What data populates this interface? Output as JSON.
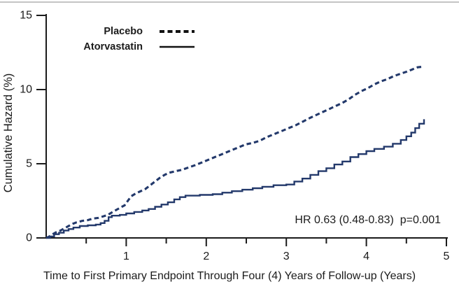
{
  "figure": {
    "top_rule_color": "#c4c4c4",
    "background": "#ffffff",
    "text_color": "#1b1b1b"
  },
  "chart_data": {
    "type": "line",
    "subtype": "cumulative-hazard-step-curves",
    "title": "",
    "xlabel": "Time to First Primary Endpoint Through Four (4) Years of Follow-up (Years)",
    "ylabel": "Cumulative Hazard (%)",
    "annotation": "HR 0.63 (0.48-0.83)  p=0.001",
    "xlim": [
      0,
      5
    ],
    "ylim": [
      0,
      15
    ],
    "x_ticks": [
      1,
      2,
      3,
      4,
      5
    ],
    "x_minor_ticks": [
      0.5,
      1.5,
      2.5,
      3.5,
      4.5
    ],
    "y_ticks": [
      0,
      5,
      10,
      15
    ],
    "grid": false,
    "legend_position": "top-left-inside",
    "axis_color": "#1b1b1b",
    "curve_color": "#23396b",
    "legend_sample_color": "#111111",
    "series": [
      {
        "name": "Placebo",
        "style": "dashed",
        "interp": "linear",
        "points": [
          [
            0,
            0
          ],
          [
            0.04,
            0.1
          ],
          [
            0.08,
            0.25
          ],
          [
            0.13,
            0.4
          ],
          [
            0.18,
            0.5
          ],
          [
            0.23,
            0.65
          ],
          [
            0.28,
            0.8
          ],
          [
            0.33,
            0.95
          ],
          [
            0.38,
            1.05
          ],
          [
            0.45,
            1.15
          ],
          [
            0.52,
            1.2
          ],
          [
            0.58,
            1.3
          ],
          [
            0.65,
            1.35
          ],
          [
            0.71,
            1.45
          ],
          [
            0.77,
            1.55
          ],
          [
            0.83,
            1.75
          ],
          [
            0.88,
            1.9
          ],
          [
            0.93,
            2.05
          ],
          [
            0.98,
            2.2
          ],
          [
            1.02,
            2.5
          ],
          [
            1.06,
            2.8
          ],
          [
            1.12,
            3.0
          ],
          [
            1.18,
            3.15
          ],
          [
            1.24,
            3.3
          ],
          [
            1.3,
            3.55
          ],
          [
            1.36,
            3.8
          ],
          [
            1.42,
            4.05
          ],
          [
            1.48,
            4.25
          ],
          [
            1.54,
            4.4
          ],
          [
            1.62,
            4.5
          ],
          [
            1.7,
            4.6
          ],
          [
            1.78,
            4.75
          ],
          [
            1.86,
            4.9
          ],
          [
            1.95,
            5.1
          ],
          [
            2.04,
            5.3
          ],
          [
            2.13,
            5.5
          ],
          [
            2.22,
            5.7
          ],
          [
            2.31,
            5.9
          ],
          [
            2.4,
            6.1
          ],
          [
            2.49,
            6.3
          ],
          [
            2.58,
            6.4
          ],
          [
            2.67,
            6.55
          ],
          [
            2.76,
            6.8
          ],
          [
            2.85,
            7.0
          ],
          [
            2.94,
            7.2
          ],
          [
            3.03,
            7.4
          ],
          [
            3.12,
            7.6
          ],
          [
            3.21,
            7.85
          ],
          [
            3.3,
            8.1
          ],
          [
            3.38,
            8.3
          ],
          [
            3.46,
            8.5
          ],
          [
            3.54,
            8.7
          ],
          [
            3.62,
            8.9
          ],
          [
            3.7,
            9.1
          ],
          [
            3.78,
            9.35
          ],
          [
            3.86,
            9.65
          ],
          [
            3.94,
            9.9
          ],
          [
            4.02,
            10.1
          ],
          [
            4.1,
            10.35
          ],
          [
            4.18,
            10.55
          ],
          [
            4.26,
            10.7
          ],
          [
            4.34,
            10.9
          ],
          [
            4.42,
            11.05
          ],
          [
            4.5,
            11.2
          ],
          [
            4.57,
            11.35
          ],
          [
            4.64,
            11.5
          ],
          [
            4.72,
            11.55
          ]
        ]
      },
      {
        "name": "Atorvastatin",
        "style": "solid",
        "interp": "step",
        "points": [
          [
            0,
            0
          ],
          [
            0.05,
            0.1
          ],
          [
            0.1,
            0.25
          ],
          [
            0.16,
            0.35
          ],
          [
            0.22,
            0.5
          ],
          [
            0.28,
            0.6
          ],
          [
            0.34,
            0.7
          ],
          [
            0.42,
            0.8
          ],
          [
            0.52,
            0.85
          ],
          [
            0.62,
            0.9
          ],
          [
            0.68,
            1.0
          ],
          [
            0.73,
            1.15
          ],
          [
            0.78,
            1.4
          ],
          [
            0.82,
            1.5
          ],
          [
            0.92,
            1.55
          ],
          [
            1.0,
            1.65
          ],
          [
            1.1,
            1.75
          ],
          [
            1.2,
            1.85
          ],
          [
            1.28,
            1.95
          ],
          [
            1.36,
            2.1
          ],
          [
            1.44,
            2.25
          ],
          [
            1.52,
            2.4
          ],
          [
            1.6,
            2.6
          ],
          [
            1.67,
            2.75
          ],
          [
            1.74,
            2.85
          ],
          [
            1.92,
            2.9
          ],
          [
            2.08,
            2.95
          ],
          [
            2.2,
            3.05
          ],
          [
            2.32,
            3.15
          ],
          [
            2.45,
            3.25
          ],
          [
            2.58,
            3.35
          ],
          [
            2.7,
            3.45
          ],
          [
            2.84,
            3.55
          ],
          [
            3.0,
            3.6
          ],
          [
            3.1,
            3.8
          ],
          [
            3.2,
            4.0
          ],
          [
            3.3,
            4.25
          ],
          [
            3.4,
            4.5
          ],
          [
            3.5,
            4.7
          ],
          [
            3.6,
            4.95
          ],
          [
            3.7,
            5.15
          ],
          [
            3.8,
            5.45
          ],
          [
            3.9,
            5.65
          ],
          [
            4.0,
            5.85
          ],
          [
            4.1,
            6.0
          ],
          [
            4.22,
            6.15
          ],
          [
            4.33,
            6.35
          ],
          [
            4.43,
            6.6
          ],
          [
            4.5,
            6.85
          ],
          [
            4.56,
            7.1
          ],
          [
            4.61,
            7.4
          ],
          [
            4.66,
            7.7
          ],
          [
            4.72,
            8.0
          ]
        ]
      }
    ]
  }
}
